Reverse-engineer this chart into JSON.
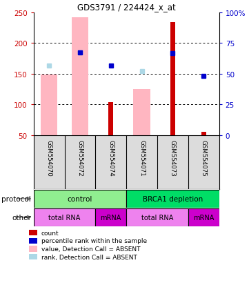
{
  "title": "GDS3791 / 224424_x_at",
  "samples": [
    "GSM554070",
    "GSM554072",
    "GSM554074",
    "GSM554071",
    "GSM554073",
    "GSM554075"
  ],
  "pink_bars": [
    148,
    242,
    0,
    125,
    0,
    0
  ],
  "red_bars": [
    0,
    0,
    103,
    0,
    234,
    55
  ],
  "blue_squares": [
    null,
    184,
    163,
    null,
    183,
    146
  ],
  "light_blue_squares": [
    163,
    184,
    null,
    154,
    null,
    null
  ],
  "ylim_left": [
    50,
    250
  ],
  "ylim_right": [
    0,
    100
  ],
  "left_yticks": [
    50,
    100,
    150,
    200,
    250
  ],
  "right_yticks": [
    0,
    25,
    50,
    75,
    100
  ],
  "right_yticklabels": [
    "0",
    "25",
    "50",
    "75",
    "100%"
  ],
  "protocol_groups": [
    {
      "label": "control",
      "start": 0,
      "end": 3,
      "color": "#90EE90"
    },
    {
      "label": "BRCA1 depletion",
      "start": 3,
      "end": 6,
      "color": "#00DD66"
    }
  ],
  "other_groups": [
    {
      "label": "total RNA",
      "start": 0,
      "end": 2,
      "color": "#EE82EE"
    },
    {
      "label": "mRNA",
      "start": 2,
      "end": 3,
      "color": "#CC00CC"
    },
    {
      "label": "total RNA",
      "start": 3,
      "end": 5,
      "color": "#EE82EE"
    },
    {
      "label": "mRNA",
      "start": 5,
      "end": 6,
      "color": "#CC00CC"
    }
  ],
  "legend_items": [
    {
      "label": "count",
      "color": "#CC0000"
    },
    {
      "label": "percentile rank within the sample",
      "color": "#0000CC"
    },
    {
      "label": "value, Detection Call = ABSENT",
      "color": "#FFB6C1"
    },
    {
      "label": "rank, Detection Call = ABSENT",
      "color": "#ADD8E6"
    }
  ],
  "protocol_label": "protocol",
  "other_label": "other",
  "pink_color": "#FFB6C1",
  "red_color": "#CC0000",
  "blue_color": "#0000CC",
  "light_blue_color": "#ADD8E6",
  "left_axis_color": "#CC0000",
  "right_axis_color": "#0000CC",
  "gray_color": "#D3D3D3",
  "sample_bg_color": "#DCDCDC"
}
